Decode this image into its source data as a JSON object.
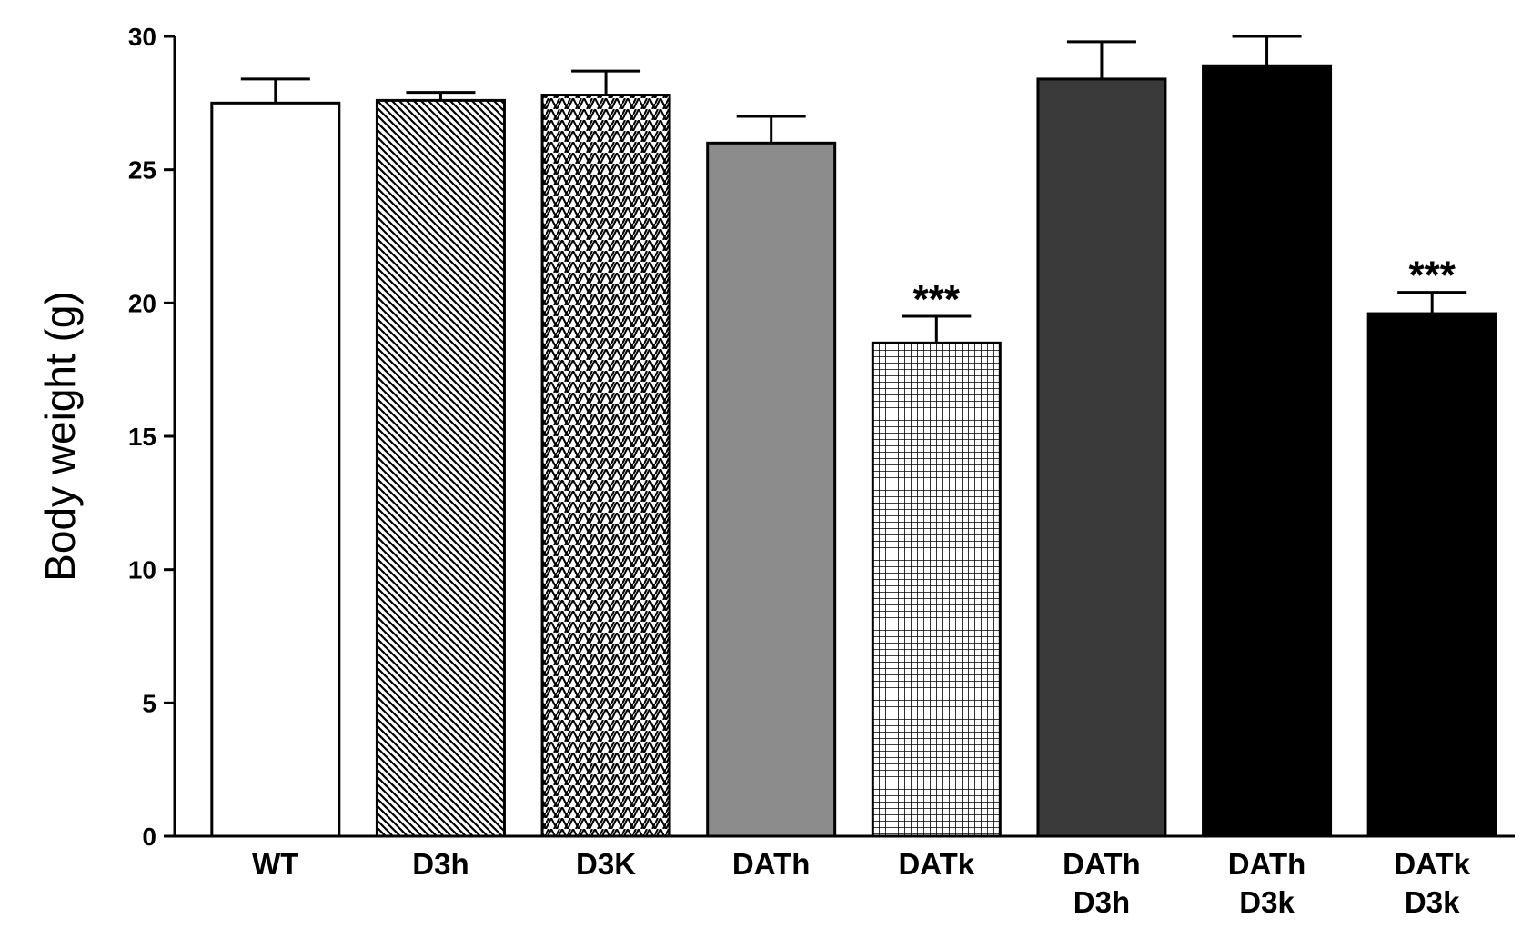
{
  "chart_data": {
    "type": "bar",
    "title": "",
    "xlabel": "",
    "ylabel": "Body weight (g)",
    "ylim": [
      0,
      30
    ],
    "yticks": [
      0,
      5,
      10,
      15,
      20,
      25,
      30
    ],
    "grid": false,
    "legend": "none",
    "categories": [
      [
        "WT"
      ],
      [
        "D3h"
      ],
      [
        "D3K"
      ],
      [
        "DATh"
      ],
      [
        "DATk"
      ],
      [
        "DATh",
        "D3h"
      ],
      [
        "DATh",
        "D3k"
      ],
      [
        "DATk",
        "D3k"
      ]
    ],
    "values": [
      27.5,
      27.6,
      27.8,
      26.0,
      18.5,
      28.4,
      28.9,
      19.6
    ],
    "errors": [
      0.9,
      0.3,
      0.9,
      1.0,
      1.0,
      1.4,
      1.1,
      0.8
    ],
    "fills": [
      "white",
      "diag-right",
      "zigzag",
      "#8c8c8c",
      "grid",
      "#3a3a3a",
      "#000000",
      "#000000"
    ],
    "annotations": [
      "",
      "",
      "",
      "",
      "***",
      "",
      "",
      "***"
    ]
  }
}
